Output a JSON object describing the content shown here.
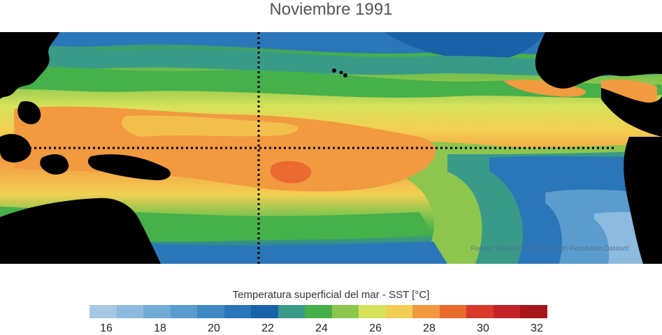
{
  "title": "Noviembre 1991",
  "colorbar": {
    "title": "Temperatura superficial del mar - SST  [°C]",
    "ticks": [
      "16",
      "18",
      "20",
      "22",
      "24",
      "26",
      "28",
      "30",
      "32"
    ],
    "colors": [
      "#a6c8e4",
      "#8dbbdf",
      "#72abd6",
      "#5a9ccd",
      "#4189c4",
      "#2b76b8",
      "#1a62a8",
      "#3a9a88",
      "#46b04a",
      "#8cc64e",
      "#d6e25a",
      "#f2cf52",
      "#f29a40",
      "#ea6a30",
      "#d93a2a",
      "#c42428",
      "#a8161c"
    ]
  },
  "source": "Fuente: NOAA OI SST V2 High Resolution Dataset",
  "map": {
    "land_color": "#000000",
    "guide_line_color": "#000000"
  }
}
